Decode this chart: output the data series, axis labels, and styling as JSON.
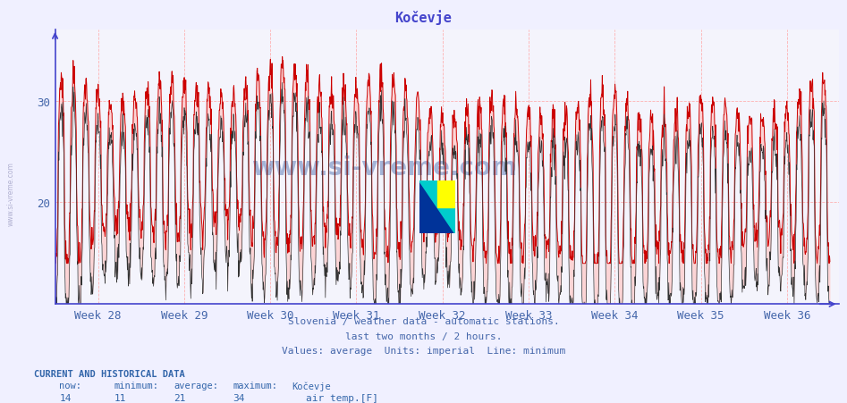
{
  "title": "Kočevje",
  "title_color": "#4444cc",
  "xlim_weeks": [
    27.5,
    36.6
  ],
  "ylim": [
    10,
    37
  ],
  "yticks": [
    20,
    30
  ],
  "xtick_labels": [
    "Week 28",
    "Week 29",
    "Week 30",
    "Week 31",
    "Week 32",
    "Week 33",
    "Week 34",
    "Week 35",
    "Week 36"
  ],
  "xtick_positions": [
    28,
    29,
    30,
    31,
    32,
    33,
    34,
    35,
    36
  ],
  "bg_color": "#f0f0ff",
  "plot_bg_color": "#f4f4fc",
  "grid_color": "#ffaaaa",
  "axis_color": "#4444cc",
  "text_color": "#4466aa",
  "line_color_avg": "#cc0000",
  "line_color_min": "#333333",
  "fill_color": "#ffcccc",
  "subtitle_lines": [
    "Slovenia / weather data - automatic stations.",
    "last two months / 2 hours.",
    "Values: average  Units: imperial  Line: minimum"
  ],
  "footer_label": "CURRENT AND HISTORICAL DATA",
  "footer_cols": [
    "now:",
    "minimum:",
    "average:",
    "maximum:",
    "Kočevje"
  ],
  "footer_vals": [
    "14",
    "11",
    "21",
    "34",
    "air temp.[F]"
  ],
  "watermark": "www.si-vreme.com",
  "watermark_color": "#4466aa",
  "sidewatermark": "www.si-vreme.com",
  "n_points": 2016,
  "seed": 7,
  "avg_min": 14,
  "avg_max": 36,
  "min_below": 3
}
